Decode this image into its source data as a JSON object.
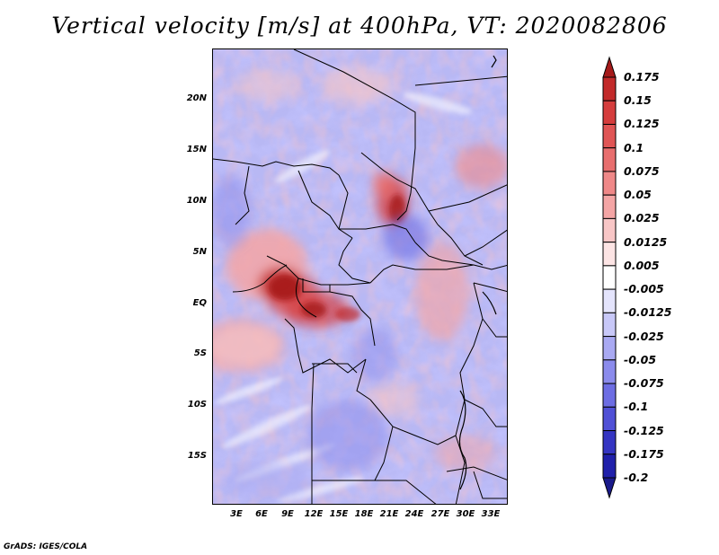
{
  "title": "Vertical velocity [m/s] at 400hPa, VT: 2020082806",
  "credit": "GrADS: IGES/COLA",
  "lat_labels": [
    "20N",
    "15N",
    "10N",
    "5N",
    "EQ",
    "5S",
    "10S",
    "15S"
  ],
  "lon_labels": [
    "3E",
    "6E",
    "9E",
    "12E",
    "15E",
    "18E",
    "21E",
    "24E",
    "27E",
    "30E",
    "33E"
  ],
  "colorbar": {
    "labels": [
      "0.175",
      "0.15",
      "0.125",
      "0.1",
      "0.075",
      "0.05",
      "0.025",
      "0.0125",
      "0.005",
      "-0.005",
      "-0.0125",
      "-0.025",
      "-0.05",
      "-0.075",
      "-0.1",
      "-0.125",
      "-0.175",
      "-0.2"
    ],
    "colors": [
      "#a51a1a",
      "#c22a2a",
      "#d53d3d",
      "#e05555",
      "#e86e6e",
      "#ef8888",
      "#f4a5a5",
      "#f8c6c6",
      "#fce4e4",
      "#ffffff",
      "#e4e4fc",
      "#c8c8f8",
      "#a9a9f2",
      "#8b8bec",
      "#6d6de3",
      "#5050d6",
      "#3535c2",
      "#2020aa",
      "#1a1a8a"
    ]
  }
}
